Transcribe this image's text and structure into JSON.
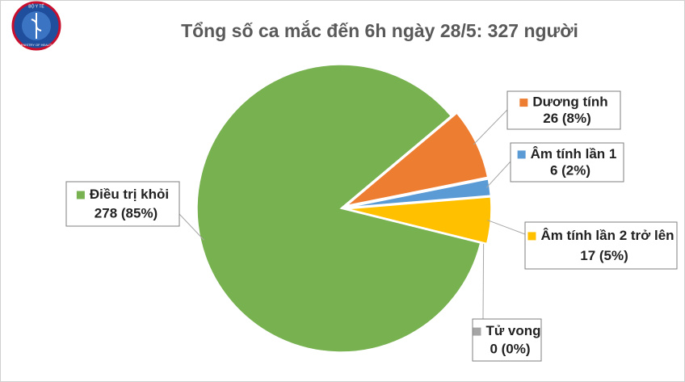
{
  "logo": {
    "top": "BỘ Y TẾ",
    "bottom": "MINISTRY OF HEALTH"
  },
  "chart_data": {
    "type": "pie",
    "title": "Tổng số ca mắc đến 6h ngày 28/5: 327 người",
    "categories": [
      "Dương tính",
      "Âm tính lần 1",
      "Âm tính lần 2 trở lên",
      "Tử vong",
      "Điều trị khỏi"
    ],
    "values": [
      26,
      6,
      17,
      0,
      278
    ],
    "value_labels": [
      "26 (8%)",
      "6 (2%)",
      "17 (5%)",
      "0 (0%)",
      "278 (85%)"
    ],
    "colors": [
      "#ed7d31",
      "#5b9bd5",
      "#ffc000",
      "#a5a5a5",
      "#77b150"
    ]
  }
}
